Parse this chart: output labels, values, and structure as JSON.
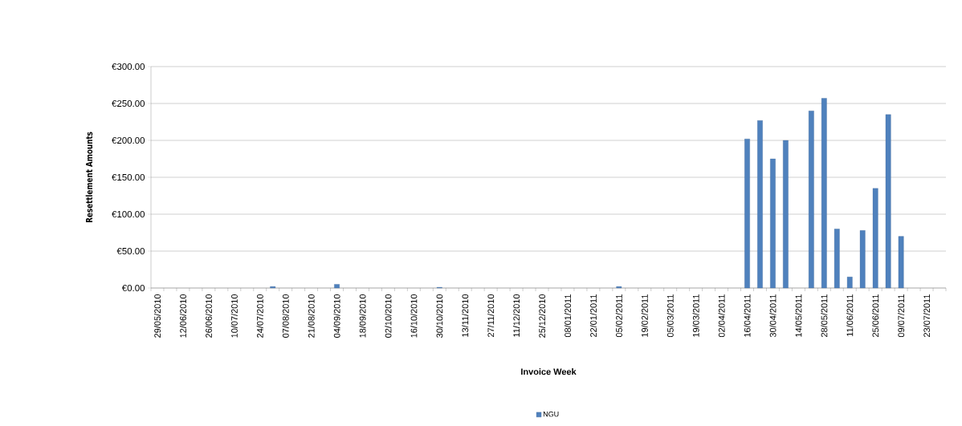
{
  "chart_data": {
    "type": "bar",
    "xlabel": "Invoice Week",
    "ylabel": "Resettlement Amounts",
    "categories": [
      "29/05/2010",
      null,
      "12/06/2010",
      null,
      "26/06/2010",
      null,
      "10/07/2010",
      null,
      "24/07/2010",
      null,
      "07/08/2010",
      null,
      "21/08/2010",
      null,
      "04/09/2010",
      null,
      "18/09/2010",
      null,
      "02/10/2010",
      null,
      "16/10/2010",
      null,
      "30/10/2010",
      null,
      "13/11/2010",
      null,
      "27/11/2010",
      null,
      "11/12/2010",
      null,
      "25/12/2010",
      null,
      "08/01/2011",
      null,
      "22/01/2011",
      null,
      "05/02/2011",
      null,
      "19/02/2011",
      null,
      "05/03/2011",
      null,
      "19/03/2011",
      null,
      "02/04/2011",
      null,
      "16/04/2011",
      null,
      "30/04/2011",
      null,
      "14/05/2011",
      null,
      "28/05/2011",
      null,
      "11/06/2011",
      null,
      "25/06/2011",
      null,
      "09/07/2011",
      null,
      "23/07/2011",
      null
    ],
    "series": [
      {
        "name": "NGU",
        "color": "#4f81bd",
        "values": [
          null,
          null,
          null,
          null,
          null,
          null,
          null,
          null,
          null,
          2,
          null,
          null,
          null,
          null,
          5,
          null,
          null,
          null,
          null,
          null,
          null,
          null,
          1,
          null,
          null,
          null,
          null,
          null,
          null,
          null,
          null,
          null,
          null,
          null,
          null,
          null,
          2,
          null,
          null,
          null,
          null,
          null,
          null,
          null,
          null,
          null,
          202,
          227,
          175,
          200,
          null,
          240,
          257,
          80,
          15,
          78,
          135,
          235,
          70,
          null,
          null,
          null
        ]
      }
    ],
    "ylim": [
      0,
      300
    ],
    "yticks": [
      {
        "value": 0,
        "label": "€0.00"
      },
      {
        "value": 50,
        "label": "€50.00"
      },
      {
        "value": 100,
        "label": "€100.00"
      },
      {
        "value": 150,
        "label": "€150.00"
      },
      {
        "value": 200,
        "label": "€200.00"
      },
      {
        "value": 250,
        "label": "€250.00"
      },
      {
        "value": 300,
        "label": "€300.00"
      }
    ],
    "grid": "y",
    "legend": "bottom"
  }
}
